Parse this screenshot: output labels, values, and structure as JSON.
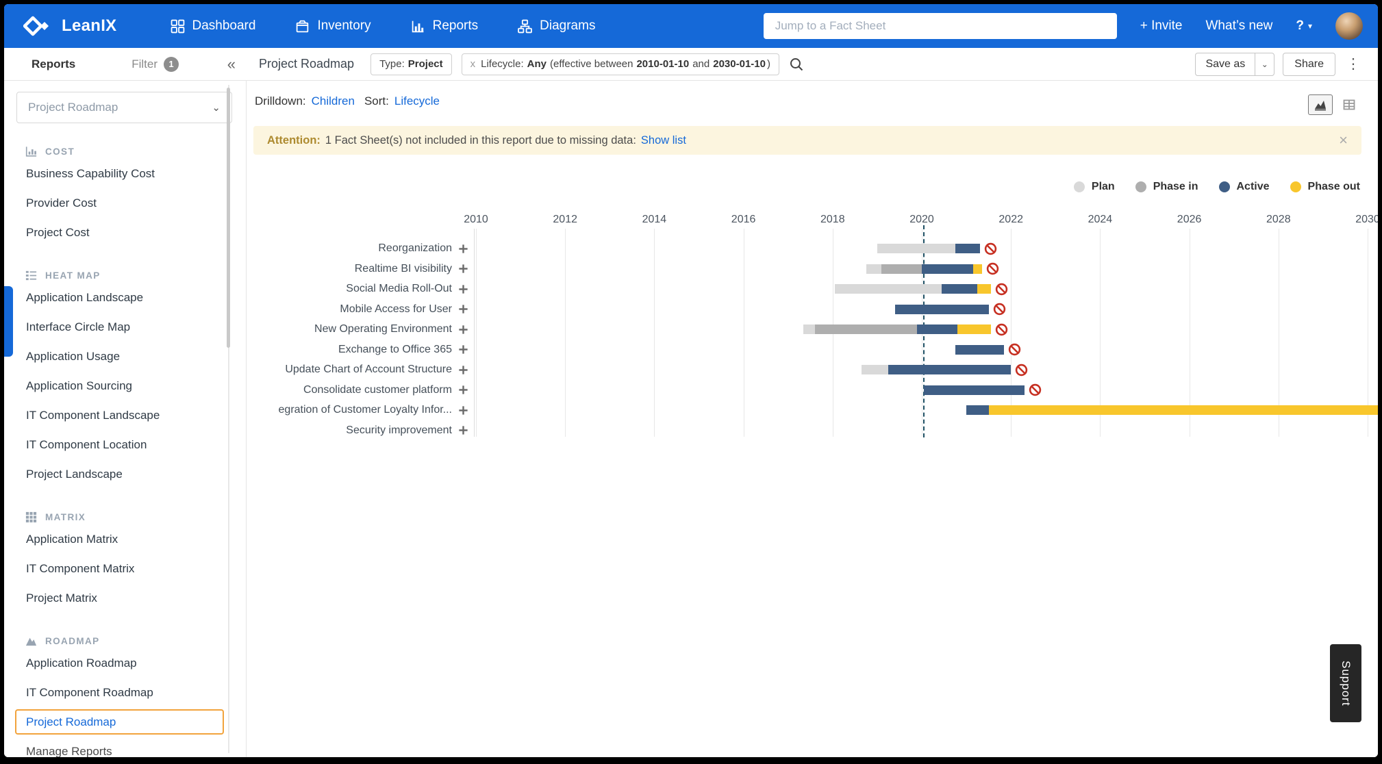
{
  "glyphs": {
    "caret_down": "▾",
    "select_chevron": "⌄"
  },
  "topnav": {
    "brand": "LeanIX",
    "items": [
      {
        "label": "Dashboard",
        "icon": "dashboard-icon"
      },
      {
        "label": "Inventory",
        "icon": "inventory-icon"
      },
      {
        "label": "Reports",
        "icon": "reports-icon"
      },
      {
        "label": "Diagrams",
        "icon": "diagrams-icon"
      }
    ],
    "search_placeholder": "Jump to a Fact Sheet",
    "invite_label": "+ Invite",
    "whats_new_label": "What’s new",
    "help_label": "?"
  },
  "toolbar": {
    "panel_tab": "Reports",
    "filter_label": "Filter",
    "filter_count": "1",
    "collapse_icon": "«",
    "title": "Project Roadmap",
    "chips": {
      "type_label": "Type:",
      "type_value": "Project",
      "lifecycle_remove": "x",
      "lifecycle_label": "Lifecycle:",
      "lifecycle_value": "Any",
      "lifecycle_detail_prefix": "(effective between",
      "lifecycle_from": "2010-01-10",
      "lifecycle_and": "and",
      "lifecycle_to": "2030-01-10",
      "lifecycle_detail_suffix": ")"
    },
    "save_as_label": "Save as",
    "share_label": "Share",
    "more_label": "⋮"
  },
  "sidebar": {
    "selector_value": "Project Roadmap",
    "sections": [
      {
        "title": "COST",
        "icon": "cost-icon",
        "items": [
          "Business Capability Cost",
          "Provider Cost",
          "Project Cost"
        ]
      },
      {
        "title": "HEAT MAP",
        "icon": "heatmap-icon",
        "items": [
          "Application Landscape",
          "Interface Circle Map",
          "Application Usage",
          "Application Sourcing",
          "IT Component Landscape",
          "IT Component Location",
          "Project Landscape"
        ]
      },
      {
        "title": "MATRIX",
        "icon": "matrix-icon",
        "items": [
          "Application Matrix",
          "IT Component Matrix",
          "Project Matrix"
        ]
      },
      {
        "title": "ROADMAP",
        "icon": "roadmap-icon",
        "items": [
          "Application Roadmap",
          "IT Component Roadmap",
          "Project Roadmap"
        ]
      }
    ],
    "active_item": "Project Roadmap",
    "footer_item": "Manage Reports"
  },
  "drilldown": {
    "label": "Drilldown:",
    "link": "Children",
    "sort_label": "Sort:",
    "sort_link": "Lifecycle"
  },
  "banner": {
    "attention_label": "Attention:",
    "message": "1 Fact Sheet(s) not included in this report due to missing data:",
    "link": "Show list",
    "close": "×"
  },
  "support_tab": "Support",
  "chart_data": {
    "type": "gantt",
    "x_ticks": [
      2010,
      2012,
      2014,
      2016,
      2018,
      2020,
      2022,
      2024,
      2026,
      2028,
      2030
    ],
    "x_range": [
      2009.9,
      2030.3
    ],
    "today": 2020.05,
    "grid": true,
    "legend_position": "top-right",
    "phase_colors": {
      "plan": "#d9d9d9",
      "phase_in": "#aeaeae",
      "active": "#3f5e85",
      "phase_out": "#f8c62c"
    },
    "blocked_color": "#c62f21",
    "legend": [
      {
        "phase": "plan",
        "label": "Plan"
      },
      {
        "phase": "phase_in",
        "label": "Phase in"
      },
      {
        "phase": "active",
        "label": "Active"
      },
      {
        "phase": "phase_out",
        "label": "Phase out"
      }
    ],
    "rows": [
      {
        "label": "Reorganization",
        "blocked": true,
        "segments": [
          {
            "phase": "plan",
            "start": 2019.0,
            "end": 2020.75
          },
          {
            "phase": "active",
            "start": 2020.75,
            "end": 2021.3
          }
        ]
      },
      {
        "label": "Realtime BI visibility",
        "blocked": true,
        "segments": [
          {
            "phase": "plan",
            "start": 2018.75,
            "end": 2019.1
          },
          {
            "phase": "phase_in",
            "start": 2019.1,
            "end": 2020.0
          },
          {
            "phase": "active",
            "start": 2020.0,
            "end": 2021.15
          },
          {
            "phase": "phase_out",
            "start": 2021.15,
            "end": 2021.35
          }
        ]
      },
      {
        "label": "Social Media Roll-Out",
        "blocked": true,
        "segments": [
          {
            "phase": "plan",
            "start": 2018.05,
            "end": 2020.45
          },
          {
            "phase": "active",
            "start": 2020.45,
            "end": 2021.25
          },
          {
            "phase": "phase_out",
            "start": 2021.25,
            "end": 2021.55
          }
        ]
      },
      {
        "label": "Mobile Access for User",
        "blocked": true,
        "segments": [
          {
            "phase": "active",
            "start": 2019.4,
            "end": 2021.5
          }
        ]
      },
      {
        "label": "New Operating Environment",
        "blocked": true,
        "segments": [
          {
            "phase": "plan",
            "start": 2017.35,
            "end": 2017.6
          },
          {
            "phase": "phase_in",
            "start": 2017.6,
            "end": 2019.9
          },
          {
            "phase": "active",
            "start": 2019.9,
            "end": 2020.8
          },
          {
            "phase": "phase_out",
            "start": 2020.8,
            "end": 2021.55
          }
        ]
      },
      {
        "label": "Exchange to Office 365",
        "blocked": true,
        "segments": [
          {
            "phase": "active",
            "start": 2020.75,
            "end": 2021.85
          }
        ]
      },
      {
        "label": "Update Chart of Account Structure",
        "blocked": true,
        "segments": [
          {
            "phase": "plan",
            "start": 2018.65,
            "end": 2019.25
          },
          {
            "phase": "active",
            "start": 2019.25,
            "end": 2022.0
          }
        ]
      },
      {
        "label": "Consolidate customer platform",
        "blocked": true,
        "segments": [
          {
            "phase": "active",
            "start": 2020.05,
            "end": 2022.3
          }
        ]
      },
      {
        "label": "egration of Customer Loyalty Infor...",
        "blocked": false,
        "segments": [
          {
            "phase": "active",
            "start": 2021.0,
            "end": 2021.5
          },
          {
            "phase": "phase_out",
            "start": 2021.5,
            "end": 2030.6
          }
        ]
      },
      {
        "label": "Security improvement",
        "blocked": false,
        "segments": []
      }
    ]
  }
}
